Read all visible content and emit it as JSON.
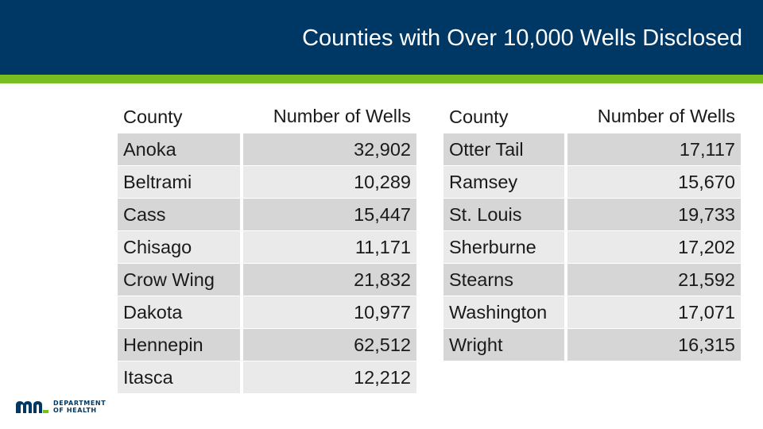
{
  "title": "Counties with Over 10,000 Wells Disclosed",
  "colors": {
    "header_bg": "#003865",
    "accent": "#78BE21",
    "row_dark": "#d6d6d6",
    "row_light": "#eaeaea"
  },
  "headers": {
    "county": "County",
    "wells": "Number of Wells"
  },
  "left_rows": [
    {
      "county": "Anoka",
      "wells": "32,902"
    },
    {
      "county": "Beltrami",
      "wells": "10,289"
    },
    {
      "county": "Cass",
      "wells": "15,447"
    },
    {
      "county": "Chisago",
      "wells": "11,171"
    },
    {
      "county": "Crow Wing",
      "wells": "21,832"
    },
    {
      "county": "Dakota",
      "wells": "10,977"
    },
    {
      "county": "Hennepin",
      "wells": "62,512"
    },
    {
      "county": "Itasca",
      "wells": "12,212"
    }
  ],
  "right_rows": [
    {
      "county": "Otter Tail",
      "wells": "17,117"
    },
    {
      "county": "Ramsey",
      "wells": "15,670"
    },
    {
      "county": "St. Louis",
      "wells": "19,733"
    },
    {
      "county": "Sherburne",
      "wells": "17,202"
    },
    {
      "county": "Stearns",
      "wells": "21,592"
    },
    {
      "county": "Washington",
      "wells": "17,071"
    },
    {
      "county": "Wright",
      "wells": "16,315"
    }
  ],
  "logo": {
    "icon": "mn-logo-icon",
    "line1": "DEPARTMENT",
    "line2": "OF HEALTH"
  }
}
